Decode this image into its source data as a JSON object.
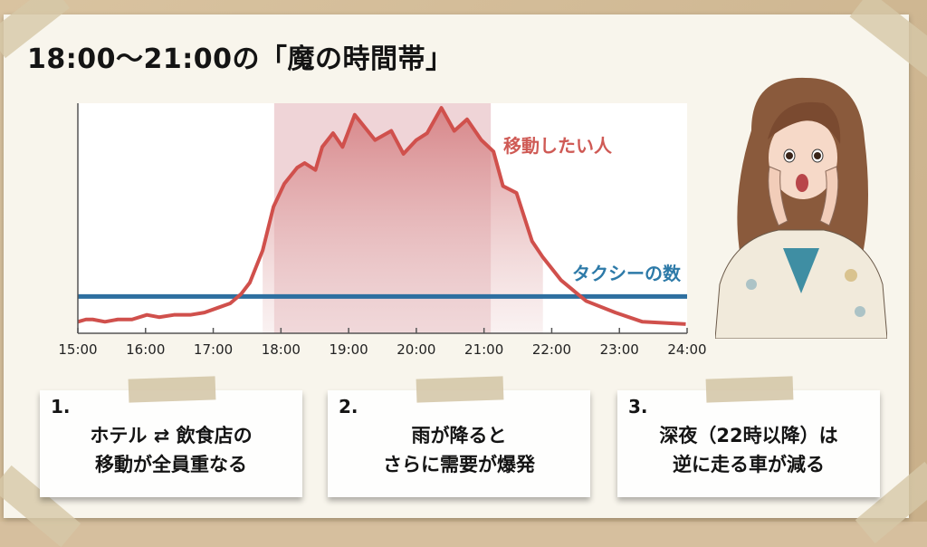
{
  "title": "18:00〜21:00の「魔の時間帯」",
  "chart_data": {
    "type": "line",
    "title": "18:00〜21:00の「魔の時間帯」",
    "xlabel": "",
    "ylabel": "",
    "x_ticks": [
      "15:00",
      "16:00",
      "17:00",
      "18:00",
      "19:00",
      "20:00",
      "21:00",
      "22:00",
      "23:00",
      "24:00"
    ],
    "xlim": [
      15,
      24
    ],
    "ylim": [
      0,
      100
    ],
    "grid": false,
    "highlight_band": {
      "from": 17.9,
      "to": 21.1,
      "color": "#d78f95"
    },
    "series": [
      {
        "name": "移動したい人",
        "color": "#d0504c",
        "fill": true,
        "x": [
          15.0,
          15.12,
          15.22,
          15.4,
          15.59,
          15.8,
          16.02,
          16.2,
          16.42,
          16.66,
          16.87,
          17.06,
          17.25,
          17.41,
          17.54,
          17.73,
          17.89,
          18.05,
          18.24,
          18.35,
          18.51,
          18.61,
          18.77,
          18.91,
          19.09,
          19.39,
          19.63,
          19.81,
          20.0,
          20.16,
          20.37,
          20.56,
          20.75,
          20.96,
          21.14,
          21.28,
          21.48,
          21.71,
          21.87,
          22.14,
          22.51,
          22.94,
          23.34,
          23.98
        ],
        "values": [
          5,
          6,
          6,
          5,
          6,
          6,
          8,
          7,
          8,
          8,
          9,
          11,
          13,
          17,
          22,
          36,
          55,
          65,
          72,
          74,
          71,
          81,
          87,
          81,
          95,
          84,
          88,
          78,
          84,
          87,
          98,
          88,
          93,
          84,
          79,
          64,
          61,
          40,
          33,
          23,
          14,
          9,
          5,
          4
        ]
      },
      {
        "name": "タクシーの数",
        "color": "#2d6fa0",
        "x": [
          15,
          24
        ],
        "values": [
          16,
          16
        ]
      }
    ],
    "annotations": [
      "移動したい人",
      "タクシーの数"
    ]
  },
  "labels": {
    "demand": "移動したい人",
    "taxi": "タクシーの数"
  },
  "cards": [
    {
      "num": "1.",
      "line1": "ホテル ⇄ 飲食店の",
      "line2": "移動が全員重なる"
    },
    {
      "num": "2.",
      "line1": "雨が降ると",
      "line2": "さらに需要が爆発"
    },
    {
      "num": "3.",
      "line1": "深夜（22時以降）は",
      "line2": "逆に走る車が減る"
    }
  ],
  "illustration": "surprised-woman"
}
